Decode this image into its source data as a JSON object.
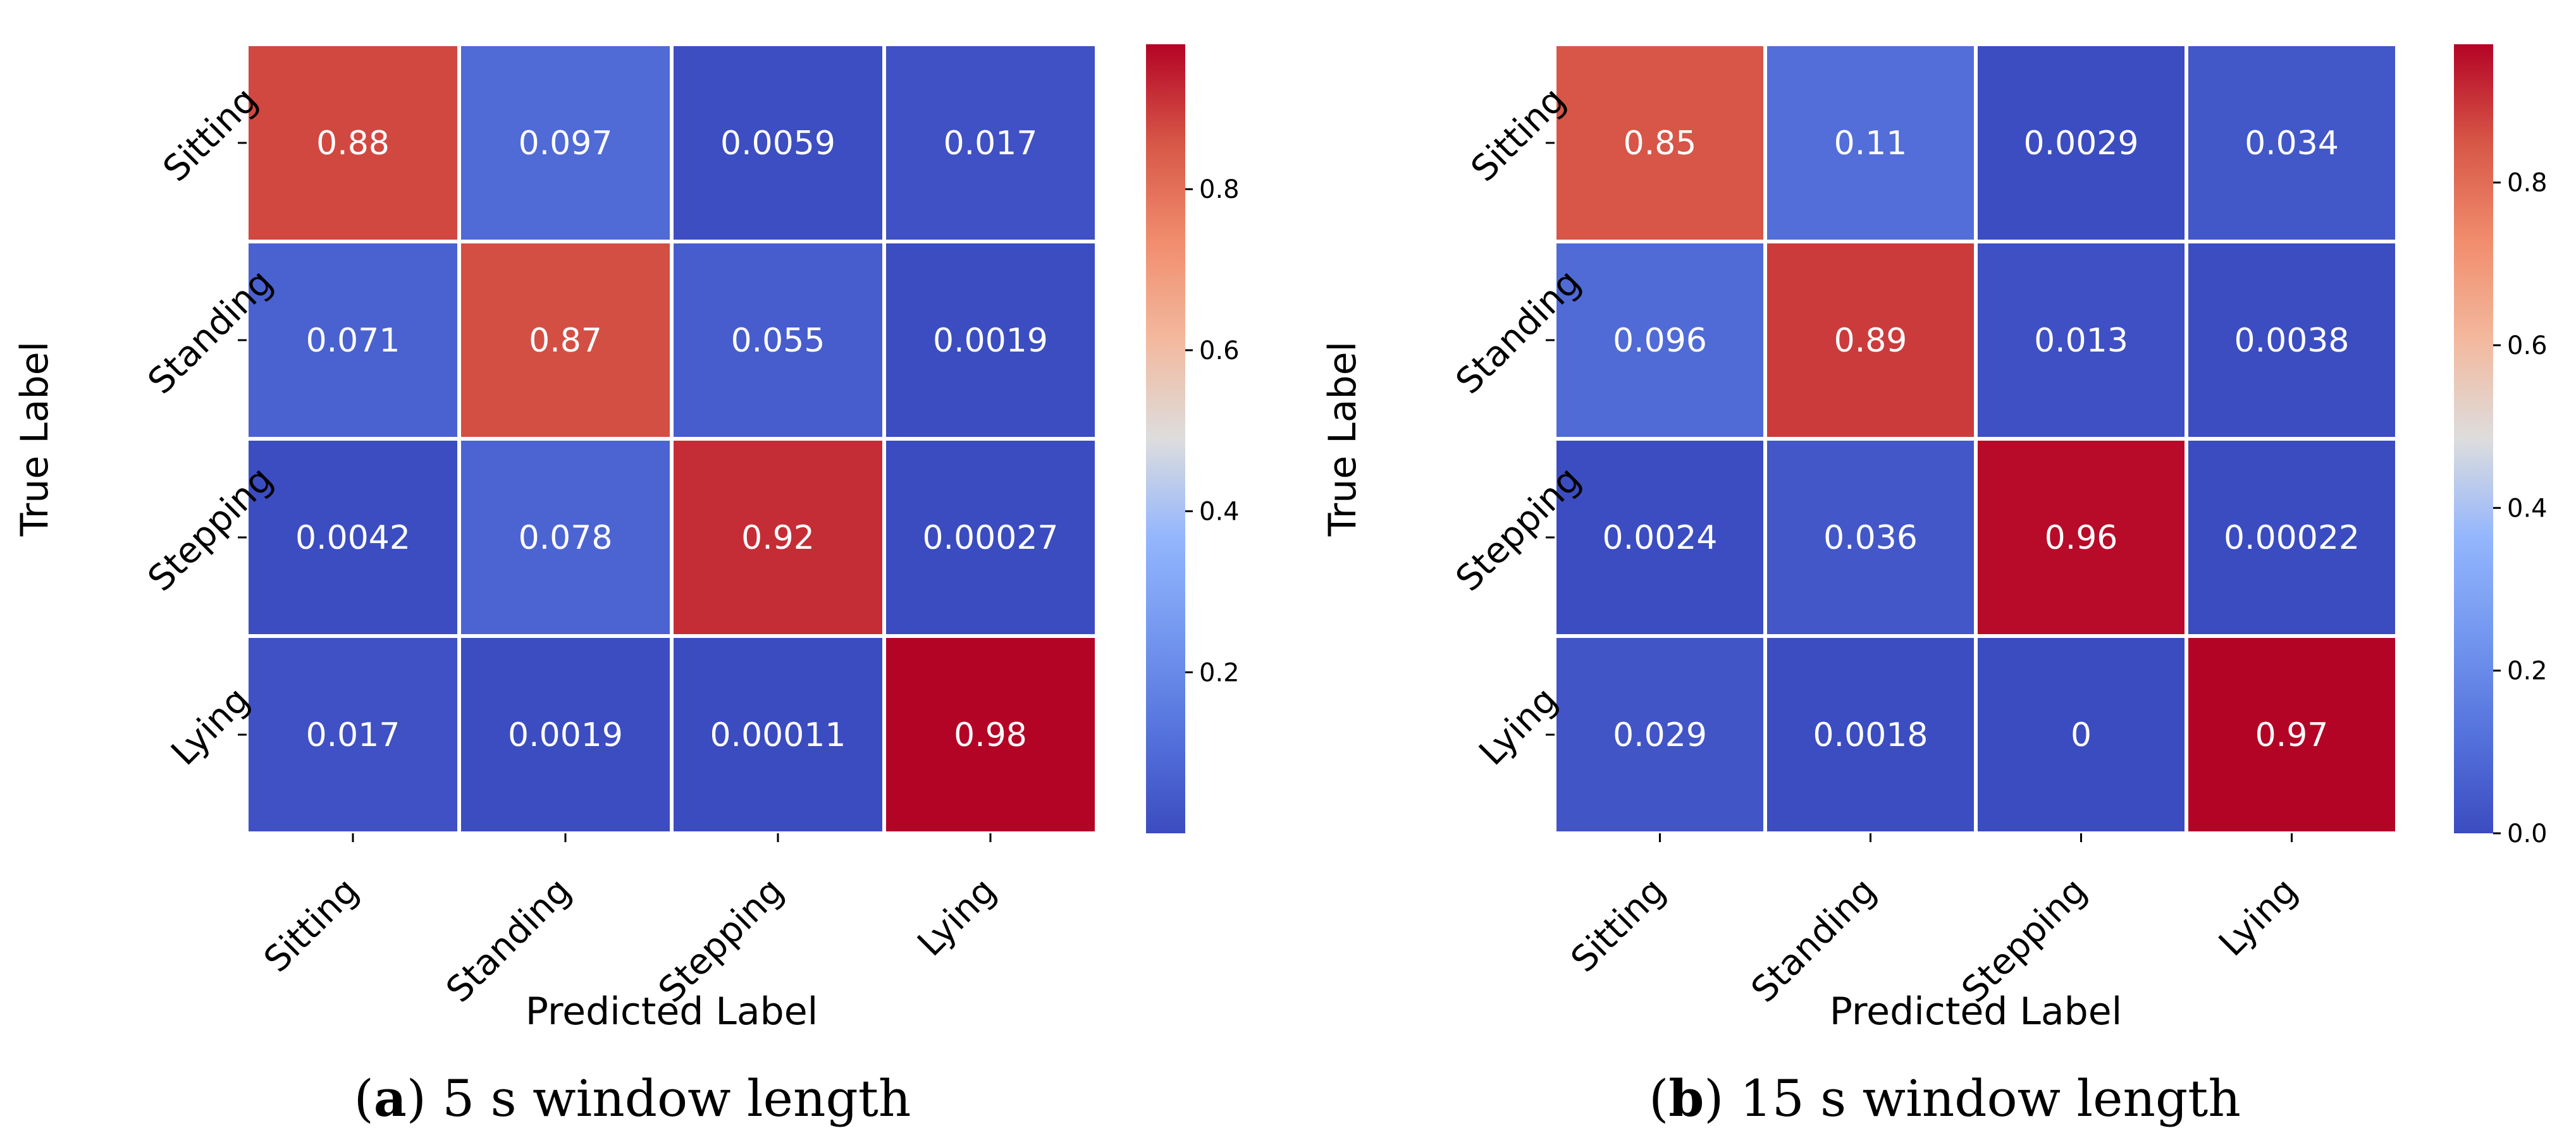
{
  "chart_data": [
    {
      "type": "heatmap",
      "title": "",
      "xlabel": "Predicted Label",
      "ylabel": "True Label",
      "categories": [
        "Sitting",
        "Standing",
        "Stepping",
        "Lying"
      ],
      "values": [
        [
          0.88,
          0.097,
          0.0059,
          0.017
        ],
        [
          0.071,
          0.87,
          0.055,
          0.0019
        ],
        [
          0.0042,
          0.078,
          0.92,
          0.00027
        ],
        [
          0.017,
          0.0019,
          0.00011,
          0.98
        ]
      ],
      "cell_labels": [
        [
          "0.88",
          "0.097",
          "0.0059",
          "0.017"
        ],
        [
          "0.071",
          "0.87",
          "0.055",
          "0.0019"
        ],
        [
          "0.0042",
          "0.078",
          "0.92",
          "0.00027"
        ],
        [
          "0.017",
          "0.0019",
          "0.00011",
          "0.98"
        ]
      ],
      "colorbar": {
        "range": [
          0.0,
          0.98
        ],
        "ticks": [
          0.2,
          0.4,
          0.6,
          0.8
        ],
        "tick_labels": [
          "0.2",
          "0.4",
          "0.6",
          "0.8"
        ]
      },
      "colormap": "coolwarm",
      "caption": {
        "letter": "a",
        "text": "5 s window length"
      }
    },
    {
      "type": "heatmap",
      "title": "",
      "xlabel": "Predicted Label",
      "ylabel": "True Label",
      "categories": [
        "Sitting",
        "Standing",
        "Stepping",
        "Lying"
      ],
      "values": [
        [
          0.85,
          0.11,
          0.0029,
          0.034
        ],
        [
          0.096,
          0.89,
          0.013,
          0.0038
        ],
        [
          0.0024,
          0.036,
          0.96,
          0.00022
        ],
        [
          0.029,
          0.0018,
          0,
          0.97
        ]
      ],
      "cell_labels": [
        [
          "0.85",
          "0.11",
          "0.0029",
          "0.034"
        ],
        [
          "0.096",
          "0.89",
          "0.013",
          "0.0038"
        ],
        [
          "0.0024",
          "0.036",
          "0.96",
          "0.00022"
        ],
        [
          "0.029",
          "0.0018",
          "0",
          "0.97"
        ]
      ],
      "colorbar": {
        "range": [
          0.0,
          0.97
        ],
        "ticks": [
          0.0,
          0.2,
          0.4,
          0.6,
          0.8
        ],
        "tick_labels": [
          "0.0",
          "0.2",
          "0.4",
          "0.6",
          "0.8"
        ]
      },
      "colormap": "coolwarm",
      "caption": {
        "letter": "b",
        "text": "15 s window length"
      }
    }
  ]
}
